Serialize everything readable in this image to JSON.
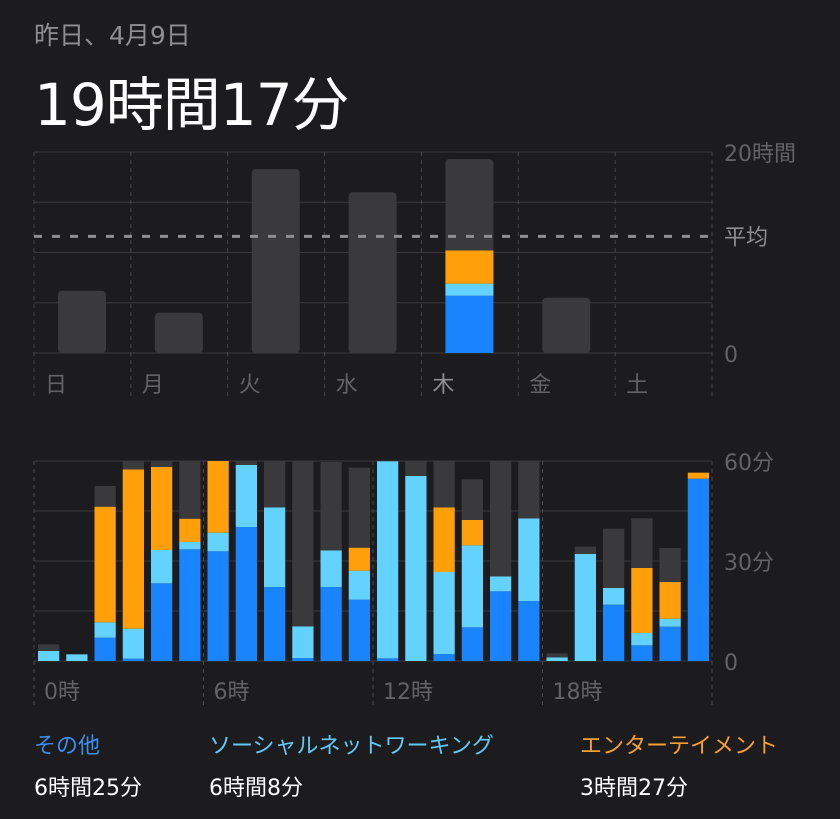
{
  "header": {
    "date": "昨日、4月9日",
    "total": "19時間17分"
  },
  "colors": {
    "other": "#1a84ff",
    "social": "#64d2ff",
    "entertainment": "#ff9f0a",
    "rest": "#3a3a3c",
    "background": "#1c1c1e"
  },
  "chart_data": [
    {
      "type": "bar",
      "stacked": true,
      "unit": "hours",
      "categories": [
        "日",
        "月",
        "火",
        "水",
        "木",
        "金",
        "土"
      ],
      "ylim": [
        0,
        20
      ],
      "y_tick_labels": [
        "20時間",
        "平均",
        "0"
      ],
      "average": 11.6,
      "totals": [
        6.2,
        4.0,
        18.3,
        16.0,
        19.3,
        5.5,
        0
      ],
      "highlight_index": 4,
      "highlight_segments": {
        "other": 5.7,
        "social": 1.2,
        "entertainment": 3.3
      },
      "grid": true
    },
    {
      "type": "bar",
      "stacked": true,
      "unit": "minutes",
      "categories": [
        "0",
        "1",
        "2",
        "3",
        "4",
        "5",
        "6",
        "7",
        "8",
        "9",
        "10",
        "11",
        "12",
        "13",
        "14",
        "15",
        "16",
        "17",
        "18",
        "19",
        "20",
        "21",
        "22",
        "23"
      ],
      "x_tick_labels": [
        "0時",
        "6時",
        "12時",
        "18時"
      ],
      "y_tick_labels": [
        "60分",
        "30分",
        "0"
      ],
      "ylim": [
        0,
        60
      ],
      "grid": true,
      "series": [
        {
          "name": "その他",
          "values": [
            0,
            0,
            7,
            0.7,
            23.3,
            33.5,
            32.9,
            40.2,
            22.2,
            0.9,
            22.2,
            18.4,
            0.8,
            0,
            2.1,
            10.1,
            20.9,
            18,
            0,
            0,
            16.9,
            4.7,
            10.3,
            54.7
          ]
        },
        {
          "name": "ソーシャルネットワーキング",
          "values": [
            3,
            2,
            4.6,
            9,
            10,
            2.2,
            5.6,
            18.6,
            23.9,
            9.5,
            11,
            8.7,
            59.1,
            55.5,
            24.6,
            24.6,
            4.5,
            24.8,
            1.1,
            32.1,
            5,
            3.7,
            2.4,
            0
          ]
        },
        {
          "name": "エンターテイメント",
          "values": [
            0,
            0,
            34.7,
            47.8,
            24.9,
            7,
            21.5,
            0,
            0,
            0,
            0,
            6.9,
            0,
            0,
            19.4,
            7.6,
            0,
            0,
            0,
            0,
            0,
            19.5,
            11,
            1.8
          ]
        },
        {
          "values": [
            2,
            0,
            6.2,
            2.5,
            1.8,
            17.3,
            0,
            1.2,
            13.9,
            49.6,
            26.5,
            24,
            0,
            4.5,
            13.9,
            12.2,
            34.6,
            17.2,
            1.2,
            2.2,
            17.8,
            14.9,
            10.2,
            0
          ]
        }
      ]
    }
  ],
  "legend": [
    {
      "label": "その他",
      "value": "6時間25分",
      "color": "#3a8ff0"
    },
    {
      "label": "ソーシャルネットワーキング",
      "value": "6時間8分",
      "color": "#64c8f5"
    },
    {
      "label": "エンターテイメント",
      "value": "3時間27分",
      "color": "#f5a033"
    }
  ]
}
